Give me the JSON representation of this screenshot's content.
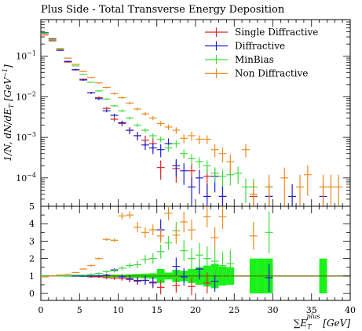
{
  "chart_data": [
    {
      "type": "scatter",
      "panel": "main",
      "title": "Plus Side - Total Transverse Energy Deposition",
      "ylabel": "1/N, dN/dE_T [GeV^-1]",
      "ylabel_parts": {
        "prefix": "1/N, dN/dE",
        "sub": "T",
        "bracket_open": " [GeV",
        "sup": "−1",
        "bracket_close": "]"
      },
      "yscale": "log",
      "ylim": [
        2e-05,
        0.8
      ],
      "xlim": [
        0,
        40
      ],
      "y_ticks": [
        {
          "value": 0.1,
          "base": "10",
          "exp": "−1"
        },
        {
          "value": 0.01,
          "base": "10",
          "exp": "−2"
        },
        {
          "value": 0.001,
          "base": "10",
          "exp": "−3"
        },
        {
          "value": 0.0001,
          "base": "10",
          "exp": "−4"
        }
      ],
      "legend_position": "top-right",
      "series": [
        {
          "name": "Single Diffractive",
          "color": "#d62728",
          "x": [
            0.5,
            1.5,
            2.5,
            3.5,
            4.5,
            5.5,
            6.5,
            7.5,
            8.5,
            9.5,
            10.5,
            11.5,
            12.5,
            13.5,
            14.5,
            15.5,
            17.5,
            19.5,
            21.5,
            23.5,
            27.5,
            29.5
          ],
          "y": [
            0.36,
            0.24,
            0.15,
            0.072,
            0.046,
            0.027,
            0.0125,
            0.0095,
            0.0052,
            0.0028,
            0.0022,
            0.0015,
            0.0011,
            0.00085,
            0.0007,
            0.00018,
            0.00017,
            0.00015,
            0.00011,
            3.5e-05,
            3.5e-05,
            3.5e-05
          ],
          "yerr_rel": [
            0.02,
            0.02,
            0.03,
            0.03,
            0.05,
            0.05,
            0.06,
            0.07,
            0.08,
            0.12,
            0.15,
            0.2,
            0.25,
            0.3,
            0.35,
            0.5,
            0.55,
            0.6,
            0.7,
            1,
            1,
            1
          ]
        },
        {
          "name": "Diffractive",
          "color": "#1f1fd6",
          "x": [
            0.5,
            1.5,
            2.5,
            3.5,
            4.5,
            5.5,
            6.5,
            7.5,
            8.5,
            9.5,
            10.5,
            11.5,
            12.5,
            13.5,
            14.5,
            15.5,
            16.5,
            17.5,
            18.5,
            19.5,
            20.5,
            21.5,
            22.5,
            23.5,
            29.5,
            32.5,
            36.5
          ],
          "y": [
            0.38,
            0.27,
            0.14,
            0.075,
            0.047,
            0.026,
            0.0125,
            0.009,
            0.0045,
            0.0035,
            0.0023,
            0.0015,
            0.0011,
            0.00065,
            0.00055,
            0.0005,
            0.0007,
            0.0002,
            0.00015,
            6e-05,
            0.0001,
            3.5e-05,
            0.00011,
            3.5e-05,
            3.5e-05,
            3.5e-05,
            3.5e-05
          ],
          "yerr_rel": [
            0.02,
            0.02,
            0.03,
            0.03,
            0.05,
            0.05,
            0.06,
            0.07,
            0.08,
            0.1,
            0.12,
            0.15,
            0.2,
            0.25,
            0.3,
            0.35,
            0.35,
            0.45,
            0.55,
            0.7,
            0.6,
            1,
            0.6,
            1,
            1,
            1,
            1
          ]
        },
        {
          "name": "MinBias",
          "color": "#3ddc3d",
          "x": [
            0.5,
            1.5,
            2.5,
            3.5,
            4.5,
            5.5,
            6.5,
            7.5,
            8.5,
            9.5,
            10.5,
            11.5,
            12.5,
            13.5,
            14.5,
            15.5,
            16.5,
            17.5,
            18.5,
            19.5,
            20.5,
            21.5,
            22.5,
            23.5,
            24.5,
            25.5,
            26.5,
            27.5,
            29.5
          ],
          "y": [
            0.37,
            0.25,
            0.155,
            0.09,
            0.058,
            0.036,
            0.023,
            0.014,
            0.0088,
            0.006,
            0.0045,
            0.003,
            0.002,
            0.0015,
            0.0011,
            0.0009,
            0.00055,
            0.0007,
            0.0004,
            0.0003,
            0.00025,
            0.0002,
            0.00013,
            0.00011,
            0.00012,
            0.00013,
            6e-05,
            6e-05,
            6e-05
          ],
          "yerr_rel": [
            0.01,
            0.01,
            0.01,
            0.02,
            0.02,
            0.03,
            0.03,
            0.04,
            0.05,
            0.06,
            0.07,
            0.08,
            0.1,
            0.12,
            0.14,
            0.16,
            0.2,
            0.2,
            0.25,
            0.3,
            0.3,
            0.35,
            0.4,
            0.45,
            0.45,
            0.45,
            0.6,
            0.6,
            0.6
          ]
        },
        {
          "name": "Non Diffractive",
          "color": "#ee8a1d",
          "x": [
            0.5,
            1.5,
            2.5,
            3.5,
            4.5,
            5.5,
            6.5,
            7.5,
            8.5,
            9.5,
            10.5,
            11.5,
            12.5,
            13.5,
            14.5,
            15.5,
            16.5,
            17.5,
            18.5,
            19.5,
            20.5,
            21.5,
            22.5,
            23.5,
            24.5,
            26.5,
            27.5,
            29.5,
            31.5,
            33.5,
            34.5,
            36.5,
            37.5,
            38.5
          ],
          "y": [
            0.33,
            0.26,
            0.15,
            0.09,
            0.063,
            0.042,
            0.03,
            0.022,
            0.017,
            0.012,
            0.0095,
            0.007,
            0.005,
            0.0038,
            0.003,
            0.0022,
            0.0018,
            0.0015,
            0.00095,
            0.0011,
            0.0009,
            0.0009,
            0.0005,
            0.0004,
            0.00025,
            0.0005,
            4e-05,
            6e-05,
            0.0001,
            6e-05,
            0.00012,
            6e-05,
            6e-05,
            6e-05
          ],
          "yerr_rel": [
            0.02,
            0.02,
            0.02,
            0.03,
            0.03,
            0.04,
            0.04,
            0.05,
            0.05,
            0.06,
            0.07,
            0.08,
            0.09,
            0.1,
            0.12,
            0.14,
            0.16,
            0.18,
            0.25,
            0.25,
            0.25,
            0.25,
            0.35,
            0.4,
            0.5,
            0.35,
            1,
            1,
            0.8,
            1,
            0.7,
            1,
            1,
            1
          ]
        }
      ]
    },
    {
      "type": "scatter",
      "panel": "ratio",
      "xlabel": "∑E_T^plus [GeV]",
      "xlabel_parts": {
        "sum": "∑E",
        "sub": "T",
        "sup": "plus",
        "unit": " [GeV]"
      },
      "xlim": [
        0,
        40
      ],
      "ylim": [
        -0.4,
        5
      ],
      "x_ticks": [
        0,
        5,
        10,
        15,
        20,
        25,
        30,
        35,
        40
      ],
      "y_ticks": [
        0,
        1,
        2,
        3,
        4,
        5
      ],
      "reference_line": {
        "y": 1,
        "color": "#6b6b00"
      },
      "uncertainty_band": {
        "color": "#19f219",
        "x_lo": [
          0,
          1,
          2,
          3,
          4,
          5,
          6,
          7,
          8,
          9,
          10,
          11,
          12,
          13,
          14,
          15,
          16,
          17,
          18,
          19,
          20,
          21,
          22,
          23,
          24,
          27,
          28,
          29,
          36
        ],
        "x_hi": [
          1,
          2,
          3,
          4,
          5,
          6,
          7,
          8,
          9,
          10,
          11,
          12,
          13,
          14,
          15,
          16,
          17,
          18,
          19,
          20,
          21,
          22,
          23,
          24,
          25,
          28,
          29,
          30,
          37
        ],
        "y_lo": [
          0.97,
          0.97,
          0.97,
          0.96,
          0.96,
          0.95,
          0.95,
          0.94,
          0.93,
          0.92,
          0.92,
          0.9,
          0.88,
          0.86,
          0.84,
          0.6,
          0.8,
          0.65,
          0.7,
          0.6,
          0.5,
          0.4,
          0.3,
          0.45,
          0.5,
          0,
          0,
          0,
          0
        ],
        "y_hi": [
          1.03,
          1.03,
          1.03,
          1.04,
          1.04,
          1.05,
          1.05,
          1.06,
          1.07,
          1.08,
          1.08,
          1.1,
          1.12,
          1.14,
          1.16,
          1.4,
          1.2,
          1.35,
          1.3,
          1.4,
          1.5,
          1.6,
          1.7,
          1.55,
          1.5,
          2,
          2,
          2,
          2
        ]
      },
      "series": [
        {
          "name": "Single Diffractive",
          "color": "#d62728",
          "x": [
            0.5,
            1.5,
            2.5,
            3.5,
            4.5,
            5.5,
            6.5,
            7.5,
            8.5,
            9.5,
            10.5,
            11.5,
            12.5,
            13.5,
            14.5,
            15.5,
            17.5,
            19.5,
            21.5
          ],
          "y": [
            0.97,
            1.0,
            1.0,
            1.0,
            1.0,
            1.0,
            0.95,
            0.95,
            0.9,
            0.88,
            0.85,
            0.8,
            0.7,
            0.75,
            0.6,
            0.35,
            0.45,
            0.4,
            0.6
          ],
          "yerr": [
            0.02,
            0.02,
            0.02,
            0.03,
            0.03,
            0.04,
            0.05,
            0.06,
            0.08,
            0.1,
            0.12,
            0.15,
            0.2,
            0.25,
            0.3,
            0.4,
            0.4,
            0.5,
            0.6
          ]
        },
        {
          "name": "Diffractive",
          "color": "#1f1fd6",
          "x": [
            0.5,
            1.5,
            2.5,
            3.5,
            4.5,
            5.5,
            6.5,
            7.5,
            8.5,
            9.5,
            10.5,
            11.5,
            12.5,
            13.5,
            14.5,
            15.5,
            17.5,
            18.5,
            20.5,
            22.5,
            29.5
          ],
          "y": [
            1.0,
            1.0,
            1.0,
            1.0,
            1.0,
            1.0,
            1.0,
            1.0,
            1.05,
            1.35,
            0.95,
            0.85,
            0.75,
            0.75,
            0.65,
            3.65,
            1.55,
            0.95,
            1.4,
            0.7,
            0.9
          ],
          "yerr": [
            0.02,
            0.02,
            0.02,
            0.03,
            0.03,
            0.04,
            0.05,
            0.06,
            0.08,
            0.1,
            0.15,
            0.2,
            0.2,
            0.25,
            0.3,
            0.6,
            0.5,
            0.5,
            0.6,
            0.6,
            0.8
          ]
        },
        {
          "name": "MinBias",
          "color": "#3ddc3d",
          "x": [
            0.5,
            1.5,
            2.5,
            3.5,
            4.5,
            5.5,
            6.5,
            7.5,
            8.5,
            9.5,
            10.5,
            11.5,
            12.5,
            13.5,
            14.5,
            15.5,
            16.5,
            17.5,
            18.5,
            19.5,
            20.5,
            21.5,
            22.5,
            23.5,
            24.5,
            29.5
          ],
          "y": [
            1.0,
            1.0,
            1.0,
            1.0,
            1.05,
            1.05,
            1.1,
            1.15,
            1.25,
            1.3,
            1.45,
            1.6,
            1.65,
            1.95,
            2.0,
            2.4,
            2.9,
            3.6,
            2.45,
            2.0,
            2.2,
            2.0,
            1.85,
            1.6,
            1.7,
            3.5
          ],
          "yerr": [
            0.02,
            0.02,
            0.02,
            0.03,
            0.03,
            0.04,
            0.05,
            0.06,
            0.08,
            0.1,
            0.12,
            0.15,
            0.2,
            0.25,
            0.3,
            0.4,
            0.4,
            0.5,
            0.6,
            0.6,
            0.7,
            0.7,
            0.8,
            0.8,
            0.8,
            1.2
          ]
        },
        {
          "name": "Non Diffractive",
          "color": "#ee8a1d",
          "x": [
            0.5,
            1.5,
            2.5,
            3.5,
            4.5,
            5.5,
            6.5,
            7.5,
            8.5,
            9.5,
            10.5,
            11.5,
            12.5,
            13.5,
            14.5,
            15.5,
            16.5,
            17.5,
            18.5,
            19.5,
            21.5,
            22.5,
            23.5,
            27.5
          ],
          "y": [
            0.95,
            1.0,
            1.05,
            1.1,
            1.2,
            1.4,
            1.6,
            2.0,
            3.1,
            3.05,
            4.45,
            4.5,
            3.8,
            3.5,
            3.65,
            3.3,
            4.6,
            3.35,
            4.1,
            3.65,
            4.4,
            3.2,
            4.4,
            3.3
          ],
          "yerr": [
            0.02,
            0.02,
            0.02,
            0.03,
            0.03,
            0.04,
            0.05,
            0.06,
            0.08,
            0.1,
            0.2,
            0.2,
            0.3,
            0.3,
            0.3,
            0.4,
            0.4,
            0.5,
            0.6,
            0.6,
            0.6,
            0.6,
            0.7,
            0.8
          ]
        }
      ]
    }
  ]
}
